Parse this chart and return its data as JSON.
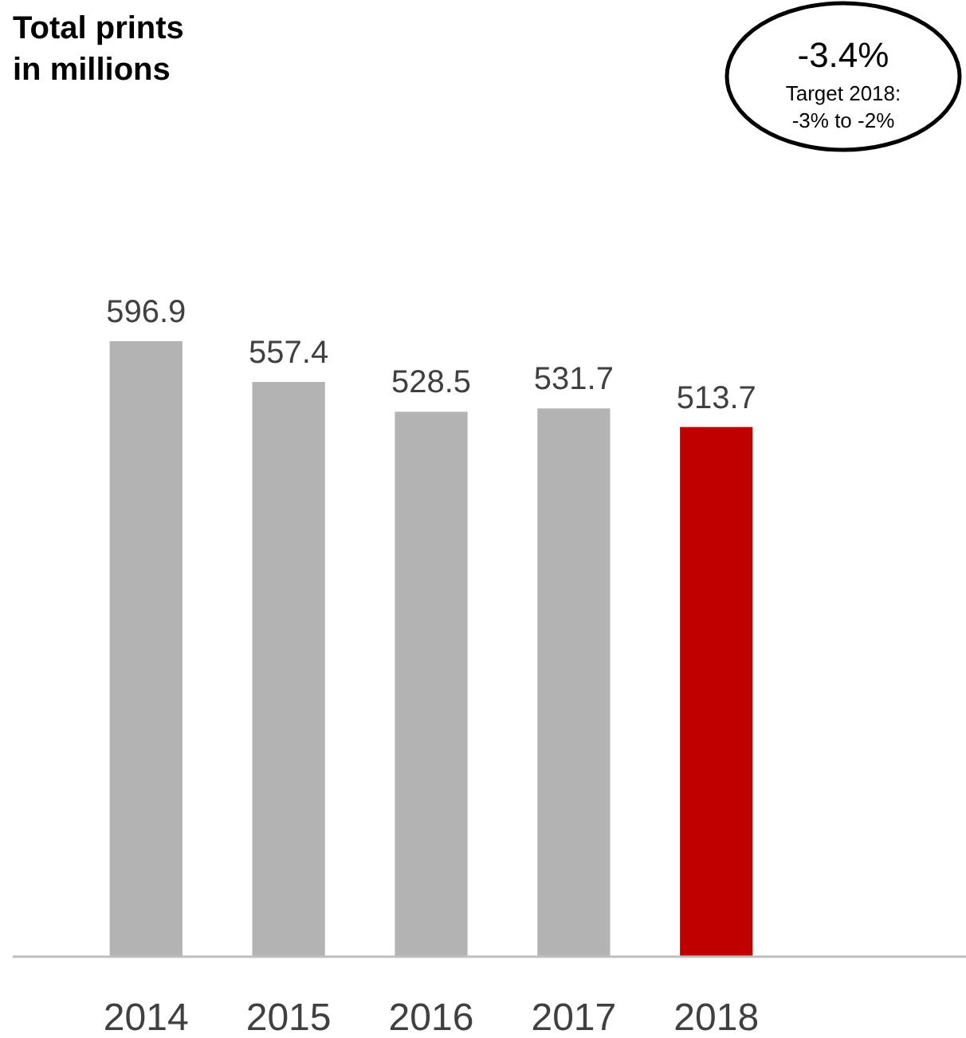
{
  "chart_data": {
    "type": "bar",
    "title": "Total prints\nin millions",
    "categories": [
      "2014",
      "2015",
      "2016",
      "2017",
      "2018"
    ],
    "values": [
      596.9,
      557.4,
      528.5,
      531.7,
      513.7
    ],
    "colors": [
      "#b3b3b3",
      "#b3b3b3",
      "#b3b3b3",
      "#b3b3b3",
      "#c00000"
    ],
    "data_labels": true,
    "annotations": [
      "-3.4%",
      "Target 2018:",
      "-3% to -2%"
    ]
  }
}
